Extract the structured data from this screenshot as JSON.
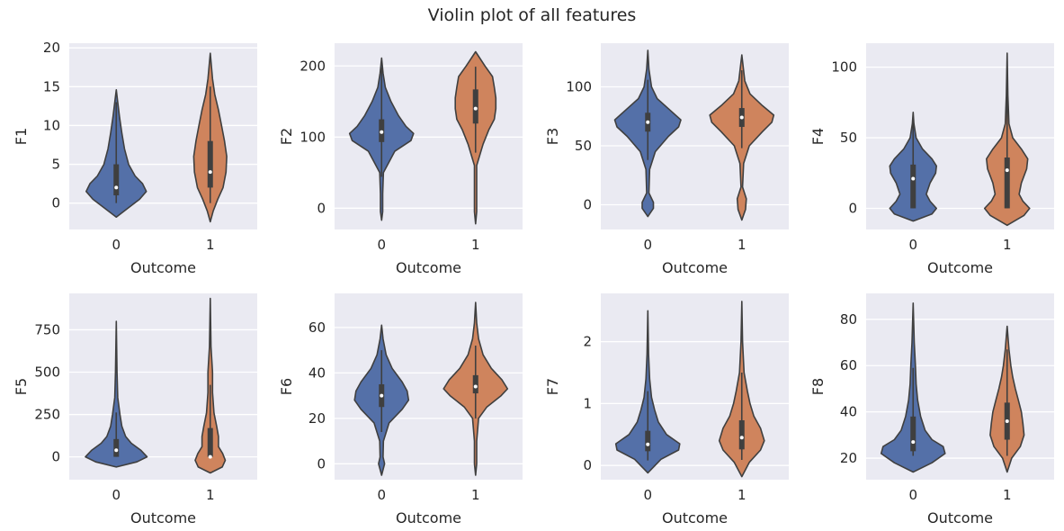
{
  "figure": {
    "title": "Violin plot of all features"
  },
  "colors": {
    "background": "#EAEAF2",
    "grid": "#FFFFFF",
    "class0": "#5470A8",
    "class1": "#CF845D",
    "edge": "#3F3F3F"
  },
  "chart_data": [
    {
      "type": "violin",
      "ylabel": "F1",
      "xlabel": "Outcome",
      "categories": [
        "0",
        "1"
      ],
      "ylim": [
        -3.4,
        20.6
      ],
      "yticks": [
        0,
        5,
        10,
        15,
        20
      ],
      "groups": [
        {
          "category": "0",
          "profile": [
            [
              -1.8,
              0
            ],
            [
              -0.5,
              0.35
            ],
            [
              0.5,
              0.62
            ],
            [
              1.5,
              0.8
            ],
            [
              2.5,
              0.7
            ],
            [
              3.5,
              0.5
            ],
            [
              5,
              0.33
            ],
            [
              7,
              0.22
            ],
            [
              9,
              0.15
            ],
            [
              11,
              0.09
            ],
            [
              13,
              0.04
            ],
            [
              14.6,
              0
            ]
          ],
          "q1": 1,
          "median": 2,
          "q3": 5,
          "whisker_low": 0,
          "whisker_high": 13
        },
        {
          "category": "1",
          "profile": [
            [
              -2.4,
              0
            ],
            [
              -1,
              0.08
            ],
            [
              0.5,
              0.2
            ],
            [
              2,
              0.34
            ],
            [
              4,
              0.42
            ],
            [
              6,
              0.44
            ],
            [
              8,
              0.38
            ],
            [
              10,
              0.3
            ],
            [
              12,
              0.22
            ],
            [
              14,
              0.12
            ],
            [
              16,
              0.06
            ],
            [
              19.3,
              0
            ]
          ],
          "q1": 2,
          "median": 4,
          "q3": 8,
          "whisker_low": 0,
          "whisker_high": 15
        }
      ]
    },
    {
      "type": "violin",
      "ylabel": "F2",
      "xlabel": "Outcome",
      "categories": [
        "0",
        "1"
      ],
      "ylim": [
        -30,
        232
      ],
      "yticks": [
        0,
        100,
        200
      ],
      "groups": [
        {
          "category": "0",
          "profile": [
            [
              -17,
              0
            ],
            [
              -5,
              0.03
            ],
            [
              20,
              0.03
            ],
            [
              50,
              0.05
            ],
            [
              80,
              0.35
            ],
            [
              95,
              0.78
            ],
            [
              105,
              0.85
            ],
            [
              115,
              0.65
            ],
            [
              130,
              0.45
            ],
            [
              150,
              0.25
            ],
            [
              170,
              0.1
            ],
            [
              190,
              0.04
            ],
            [
              211,
              0
            ]
          ],
          "q1": 93,
          "median": 107,
          "q3": 125,
          "whisker_low": 44,
          "whisker_high": 198
        },
        {
          "category": "1",
          "profile": [
            [
              -22,
              0
            ],
            [
              -5,
              0.03
            ],
            [
              20,
              0.03
            ],
            [
              60,
              0.03
            ],
            [
              90,
              0.2
            ],
            [
              110,
              0.35
            ],
            [
              125,
              0.5
            ],
            [
              140,
              0.54
            ],
            [
              155,
              0.54
            ],
            [
              170,
              0.5
            ],
            [
              185,
              0.45
            ],
            [
              200,
              0.25
            ],
            [
              220,
              0
            ]
          ],
          "q1": 119,
          "median": 140,
          "q3": 167,
          "whisker_low": 78,
          "whisker_high": 199
        }
      ]
    },
    {
      "type": "violin",
      "ylabel": "F3",
      "xlabel": "Outcome",
      "categories": [
        "0",
        "1"
      ],
      "ylim": [
        -21,
        137
      ],
      "yticks": [
        0,
        50,
        100
      ],
      "groups": [
        {
          "category": "0",
          "profile": [
            [
              -10,
              0
            ],
            [
              -3,
              0.15
            ],
            [
              2,
              0.15
            ],
            [
              10,
              0.03
            ],
            [
              30,
              0.05
            ],
            [
              45,
              0.2
            ],
            [
              58,
              0.55
            ],
            [
              66,
              0.82
            ],
            [
              72,
              0.88
            ],
            [
              80,
              0.6
            ],
            [
              90,
              0.25
            ],
            [
              100,
              0.1
            ],
            [
              115,
              0.03
            ],
            [
              131,
              0
            ]
          ],
          "q1": 62,
          "median": 70,
          "q3": 78,
          "whisker_low": 38,
          "whisker_high": 106
        },
        {
          "category": "1",
          "profile": [
            [
              -13,
              0
            ],
            [
              -4,
              0.1
            ],
            [
              5,
              0.12
            ],
            [
              15,
              0.02
            ],
            [
              35,
              0.05
            ],
            [
              50,
              0.2
            ],
            [
              62,
              0.55
            ],
            [
              70,
              0.8
            ],
            [
              76,
              0.85
            ],
            [
              84,
              0.55
            ],
            [
              94,
              0.22
            ],
            [
              105,
              0.08
            ],
            [
              127,
              0
            ]
          ],
          "q1": 66,
          "median": 74,
          "q3": 82,
          "whisker_low": 48,
          "whisker_high": 114
        }
      ]
    },
    {
      "type": "violin",
      "ylabel": "F4",
      "xlabel": "Outcome",
      "categories": [
        "0",
        "1"
      ],
      "ylim": [
        -15,
        117
      ],
      "yticks": [
        0,
        50,
        100
      ],
      "groups": [
        {
          "category": "0",
          "profile": [
            [
              -9,
              0
            ],
            [
              -4,
              0.5
            ],
            [
              0,
              0.62
            ],
            [
              5,
              0.45
            ],
            [
              10,
              0.35
            ],
            [
              18,
              0.45
            ],
            [
              25,
              0.6
            ],
            [
              30,
              0.62
            ],
            [
              35,
              0.5
            ],
            [
              42,
              0.25
            ],
            [
              50,
              0.08
            ],
            [
              60,
              0.02
            ],
            [
              68,
              0
            ]
          ],
          "q1": 0,
          "median": 21,
          "q3": 31,
          "whisker_low": 0,
          "whisker_high": 60
        },
        {
          "category": "1",
          "profile": [
            [
              -12,
              0
            ],
            [
              -5,
              0.45
            ],
            [
              0,
              0.6
            ],
            [
              5,
              0.42
            ],
            [
              10,
              0.32
            ],
            [
              18,
              0.38
            ],
            [
              28,
              0.52
            ],
            [
              35,
              0.55
            ],
            [
              42,
              0.38
            ],
            [
              50,
              0.15
            ],
            [
              60,
              0.05
            ],
            [
              80,
              0.02
            ],
            [
              110,
              0
            ]
          ],
          "q1": 0,
          "median": 27,
          "q3": 36,
          "whisker_low": 0,
          "whisker_high": 99
        }
      ]
    },
    {
      "type": "violin",
      "ylabel": "F5",
      "xlabel": "Outcome",
      "categories": [
        "0",
        "1"
      ],
      "ylim": [
        -135,
        965
      ],
      "yticks": [
        0,
        250,
        500,
        750
      ],
      "groups": [
        {
          "category": "0",
          "profile": [
            [
              -60,
              0
            ],
            [
              -30,
              0.55
            ],
            [
              0,
              0.82
            ],
            [
              40,
              0.65
            ],
            [
              80,
              0.4
            ],
            [
              120,
              0.25
            ],
            [
              180,
              0.15
            ],
            [
              250,
              0.1
            ],
            [
              350,
              0.04
            ],
            [
              500,
              0.02
            ],
            [
              800,
              0
            ]
          ],
          "q1": 0,
          "median": 39,
          "q3": 105,
          "whisker_low": 0,
          "whisker_high": 262
        },
        {
          "category": "1",
          "profile": [
            [
              -95,
              0
            ],
            [
              -60,
              0.32
            ],
            [
              -20,
              0.4
            ],
            [
              20,
              0.33
            ],
            [
              60,
              0.22
            ],
            [
              120,
              0.22
            ],
            [
              180,
              0.17
            ],
            [
              260,
              0.1
            ],
            [
              380,
              0.06
            ],
            [
              500,
              0.06
            ],
            [
              650,
              0.02
            ],
            [
              935,
              0
            ]
          ],
          "q1": 0,
          "median": 0,
          "q3": 170,
          "whisker_low": 0,
          "whisker_high": 425
        }
      ]
    },
    {
      "type": "violin",
      "ylabel": "F6",
      "xlabel": "Outcome",
      "categories": [
        "0",
        "1"
      ],
      "ylim": [
        -7,
        75
      ],
      "yticks": [
        0,
        20,
        40,
        60
      ],
      "groups": [
        {
          "category": "0",
          "profile": [
            [
              -5,
              0
            ],
            [
              0,
              0.08
            ],
            [
              3,
              0.04
            ],
            [
              10,
              0.05
            ],
            [
              18,
              0.2
            ],
            [
              24,
              0.55
            ],
            [
              28,
              0.72
            ],
            [
              32,
              0.68
            ],
            [
              36,
              0.55
            ],
            [
              42,
              0.28
            ],
            [
              48,
              0.12
            ],
            [
              55,
              0.04
            ],
            [
              61,
              0
            ]
          ],
          "q1": 25,
          "median": 30,
          "q3": 35,
          "whisker_low": 14,
          "whisker_high": 50
        },
        {
          "category": "1",
          "profile": [
            [
              -5,
              0
            ],
            [
              0,
              0.03
            ],
            [
              10,
              0.03
            ],
            [
              20,
              0.08
            ],
            [
              25,
              0.3
            ],
            [
              30,
              0.68
            ],
            [
              33,
              0.85
            ],
            [
              37,
              0.7
            ],
            [
              42,
              0.42
            ],
            [
              48,
              0.2
            ],
            [
              55,
              0.08
            ],
            [
              62,
              0.03
            ],
            [
              71,
              0
            ]
          ],
          "q1": 31,
          "median": 34,
          "q3": 39,
          "whisker_low": 20,
          "whisker_high": 52
        }
      ]
    },
    {
      "type": "violin",
      "ylabel": "F7",
      "xlabel": "Outcome",
      "categories": [
        "0",
        "1"
      ],
      "ylim": [
        -0.23,
        2.78
      ],
      "yticks": [
        0,
        1,
        2
      ],
      "groups": [
        {
          "category": "0",
          "profile": [
            [
              -0.12,
              0
            ],
            [
              0.1,
              0.35
            ],
            [
              0.25,
              0.82
            ],
            [
              0.35,
              0.85
            ],
            [
              0.5,
              0.5
            ],
            [
              0.7,
              0.28
            ],
            [
              0.9,
              0.18
            ],
            [
              1.1,
              0.1
            ],
            [
              1.4,
              0.05
            ],
            [
              1.8,
              0.02
            ],
            [
              2.5,
              0
            ]
          ],
          "q1": 0.23,
          "median": 0.34,
          "q3": 0.56,
          "whisker_low": 0.08,
          "whisker_high": 1.2
        },
        {
          "category": "1",
          "profile": [
            [
              -0.18,
              0
            ],
            [
              0.05,
              0.2
            ],
            [
              0.25,
              0.5
            ],
            [
              0.4,
              0.6
            ],
            [
              0.6,
              0.5
            ],
            [
              0.8,
              0.32
            ],
            [
              1,
              0.22
            ],
            [
              1.2,
              0.15
            ],
            [
              1.5,
              0.06
            ],
            [
              2,
              0.02
            ],
            [
              2.65,
              0
            ]
          ],
          "q1": 0.26,
          "median": 0.45,
          "q3": 0.73,
          "whisker_low": 0.09,
          "whisker_high": 1.5
        }
      ]
    },
    {
      "type": "violin",
      "ylabel": "F8",
      "xlabel": "Outcome",
      "categories": [
        "0",
        "1"
      ],
      "ylim": [
        10.7,
        91.2
      ],
      "yticks": [
        20,
        40,
        60,
        80
      ],
      "groups": [
        {
          "category": "0",
          "profile": [
            [
              14,
              0
            ],
            [
              18,
              0.5
            ],
            [
              22,
              0.85
            ],
            [
              25,
              0.8
            ],
            [
              28,
              0.5
            ],
            [
              32,
              0.32
            ],
            [
              38,
              0.2
            ],
            [
              45,
              0.12
            ],
            [
              52,
              0.08
            ],
            [
              60,
              0.06
            ],
            [
              70,
              0.03
            ],
            [
              87,
              0
            ]
          ],
          "q1": 23,
          "median": 27,
          "q3": 38,
          "whisker_low": 21,
          "whisker_high": 59
        },
        {
          "category": "1",
          "profile": [
            [
              14,
              0
            ],
            [
              20,
              0.12
            ],
            [
              25,
              0.35
            ],
            [
              30,
              0.45
            ],
            [
              35,
              0.42
            ],
            [
              40,
              0.38
            ],
            [
              45,
              0.3
            ],
            [
              50,
              0.22
            ],
            [
              55,
              0.15
            ],
            [
              60,
              0.1
            ],
            [
              67,
              0.05
            ],
            [
              77,
              0
            ]
          ],
          "q1": 28,
          "median": 36,
          "q3": 44,
          "whisker_low": 21,
          "whisker_high": 67
        }
      ]
    }
  ]
}
